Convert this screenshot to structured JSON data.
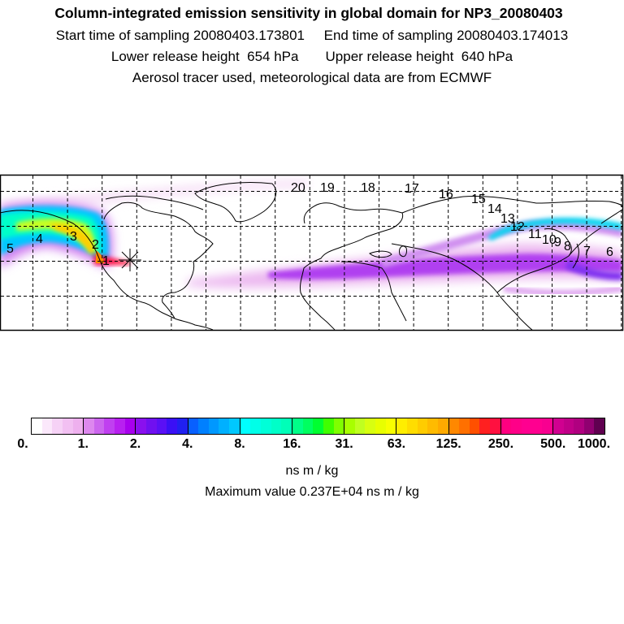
{
  "header": {
    "title": "Column-integrated emission sensitivity in global domain for NP3_20080403",
    "sampling_times": "Start time of sampling 20080403.173801     End time of sampling 20080403.174013",
    "release_heights": "Lower release height  654 hPa       Upper release height  640 hPa",
    "info": "Aerosol tracer used, meteorological data are from ECMWF"
  },
  "map": {
    "day_labels": [
      "1",
      "2",
      "3",
      "4",
      "5",
      "6",
      "7",
      "8",
      "9",
      "10",
      "11",
      "12",
      "13",
      "14",
      "15",
      "16",
      "17",
      "18",
      "19",
      "20"
    ],
    "release_marker": "asterisk",
    "colors": {
      "coast": "#000000",
      "grid": "#000000"
    }
  },
  "colorbar": {
    "tick_labels": [
      "0.",
      "1.",
      "2.",
      "4.",
      "8.",
      "16.",
      "31.",
      "63.",
      "125.",
      "250.",
      "500.",
      "1000."
    ],
    "segments": [
      [
        "#ffffff",
        "#fbe8fb",
        "#f6d2f6",
        "#f2c0f2",
        "#eeb0ee"
      ],
      [
        "#dd88ee",
        "#cc66ee",
        "#c040f0",
        "#b820f0",
        "#a800ee"
      ],
      [
        "#8a10ee",
        "#7010f0",
        "#5a10f5",
        "#3a10f5",
        "#2020f0"
      ],
      [
        "#0860ff",
        "#0080ff",
        "#0098ff",
        "#00b0ff",
        "#00c8ff"
      ],
      [
        "#00ffff",
        "#00ffe8",
        "#00ffd8",
        "#00ffc8",
        "#00ffb8"
      ],
      [
        "#00ff88",
        "#00ff60",
        "#00ff30",
        "#40ff00",
        "#80ff00"
      ],
      [
        "#a8ff00",
        "#c0ff20",
        "#d8ff10",
        "#e8ff00",
        "#f8ff00"
      ],
      [
        "#ffee00",
        "#ffdd00",
        "#ffcc00",
        "#ffbb00",
        "#ffaa00"
      ],
      [
        "#ff8800",
        "#ff7000",
        "#ff5000",
        "#ff2020",
        "#ff1040"
      ],
      [
        "#ff0080",
        "#ff0088",
        "#ff0090",
        "#ff0090",
        "#f80090"
      ],
      [
        "#d00090",
        "#c00088",
        "#b00080",
        "#900070",
        "#600050"
      ]
    ],
    "units": "ns m / kg",
    "max_value": "Maximum value  0.237E+04 ns m / kg"
  }
}
